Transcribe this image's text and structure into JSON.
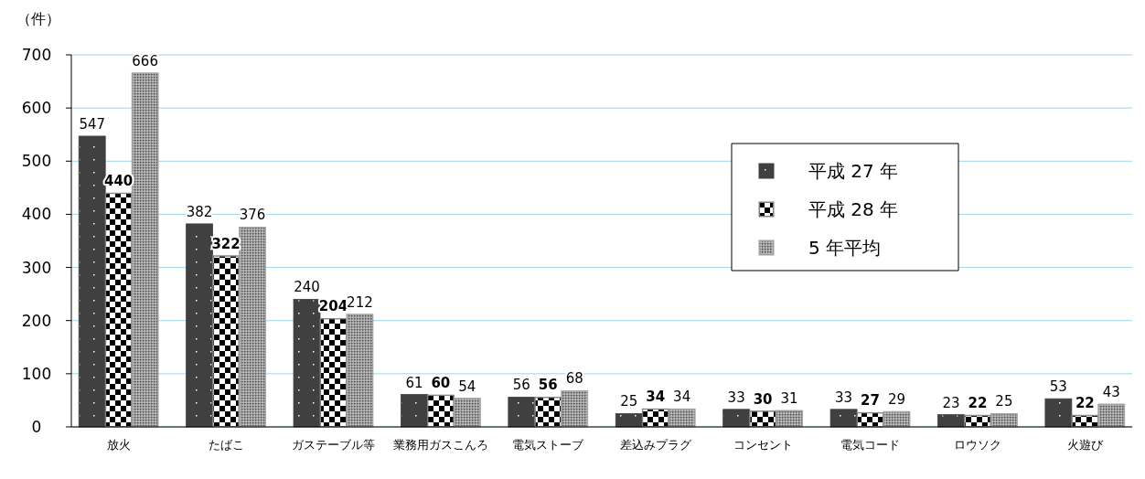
{
  "chart_data": {
    "type": "bar",
    "ylabel": "（件）",
    "categories": [
      "放火",
      "たばこ",
      "ガステーブル等",
      "業務用ガスこんろ",
      "電気ストーブ",
      "差込みプラグ",
      "コンセント",
      "電気コード",
      "ロウソク",
      "火遊び"
    ],
    "series": [
      {
        "name": "平成 27 年",
        "color": "#404040",
        "values": [
          547,
          382,
          240,
          61,
          56,
          25,
          33,
          33,
          23,
          53
        ]
      },
      {
        "name": "平成 28 年",
        "color": "#808080",
        "values": [
          440,
          322,
          204,
          60,
          56,
          34,
          30,
          27,
          22,
          22
        ]
      },
      {
        "name": "5 年平均",
        "color": "#a0a0a0",
        "values": [
          666,
          376,
          212,
          54,
          68,
          34,
          31,
          29,
          25,
          43
        ]
      }
    ],
    "ylim": [
      0,
      700
    ],
    "yticks": [
      0,
      100,
      200,
      300,
      400,
      500,
      600,
      700
    ],
    "grid": "y",
    "legend": "top right",
    "data_labels": true
  }
}
